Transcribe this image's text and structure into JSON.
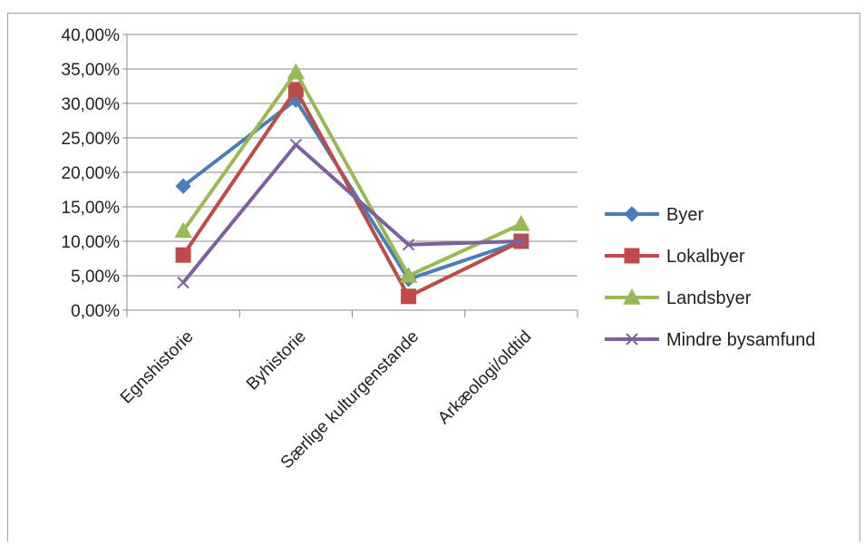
{
  "chart_data": {
    "type": "line",
    "title": "",
    "xlabel": "",
    "ylabel": "",
    "categories": [
      "Egnshistorie",
      "Byhistorie",
      "Særlige kulturgenstande",
      "Arkæologi/oldtid"
    ],
    "yticks": [
      "0,00%",
      "5,00%",
      "10,00%",
      "15,00%",
      "20,00%",
      "25,00%",
      "30,00%",
      "35,00%",
      "40,00%"
    ],
    "ylim": [
      0,
      40
    ],
    "grid": true,
    "legend_position": "right",
    "series": [
      {
        "name": "Byer",
        "values": [
          18.0,
          30.5,
          4.5,
          10.0
        ],
        "color": "#4a7ebb",
        "marker": "diamond"
      },
      {
        "name": "Lokalbyer",
        "values": [
          8.0,
          32.0,
          2.0,
          10.0
        ],
        "color": "#be4b48",
        "marker": "square"
      },
      {
        "name": "Landsbyer",
        "values": [
          11.5,
          34.5,
          5.0,
          12.5
        ],
        "color": "#98b954",
        "marker": "triangle"
      },
      {
        "name": "Mindre bysamfund",
        "values": [
          4.0,
          24.0,
          9.5,
          10.0
        ],
        "color": "#7d60a0",
        "marker": "x"
      }
    ]
  }
}
